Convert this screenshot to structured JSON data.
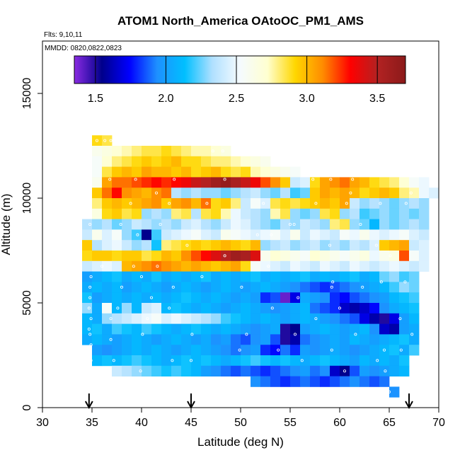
{
  "chart_data": {
    "type": "heatmap",
    "title": "ATOM1 North_America OAtoOC_PM1_AMS",
    "flights_label": "Flts: 9,10,11",
    "dates_label": "MMDD: 0820,0822,0823",
    "xlabel": "Latitude (deg N)",
    "ylabel": "Altitude (m)",
    "xlim": [
      30,
      70
    ],
    "ylim": [
      0,
      17500
    ],
    "x_ticks": [
      30,
      35,
      40,
      45,
      50,
      55,
      60,
      65,
      70
    ],
    "y_ticks": [
      0,
      5000,
      10000,
      15000
    ],
    "colorbar": {
      "range": [
        1.35,
        3.7
      ],
      "ticks": [
        1.5,
        2.0,
        2.5,
        3.0,
        3.5
      ],
      "tick_labels": [
        "1.5",
        "2.0",
        "2.5",
        "3.0",
        "3.5"
      ],
      "colors": [
        "#8a2be2",
        "#00008b",
        "#0000ff",
        "#1e90ff",
        "#00bfff",
        "#b0e0ff",
        "#f5fbff",
        "#ffffd0",
        "#ffd700",
        "#ff8c00",
        "#ff0000",
        "#b22222",
        "#8b1a1a"
      ]
    },
    "arrow_latitudes": [
      34.7,
      45,
      67
    ],
    "cell_size": {
      "lat": 1,
      "alt": 500
    },
    "bands": [
      {
        "alt": 12750,
        "lat": [
          35,
          36
        ],
        "values": [
          2.9,
          2.85
        ]
      },
      {
        "alt": 12250,
        "lat": [
          35,
          49
        ],
        "values": [
          2.6,
          2.65,
          2.7,
          2.75,
          2.8,
          2.85,
          2.85,
          2.9,
          2.85,
          2.8,
          2.75,
          2.75,
          2.7,
          2.65
        ]
      },
      {
        "alt": 11750,
        "lat": [
          35,
          52
        ],
        "values": [
          2.55,
          2.7,
          2.8,
          2.85,
          2.9,
          2.95,
          2.9,
          2.95,
          3.0,
          2.9,
          2.9,
          2.85,
          2.8,
          2.8,
          2.75,
          2.7,
          2.65,
          2.6
        ]
      },
      {
        "alt": 11250,
        "lat": [
          35,
          55
        ],
        "values": [
          2.55,
          2.85,
          2.95,
          3.0,
          2.95,
          3.05,
          3.0,
          3.0,
          2.95,
          3.0,
          2.9,
          2.95,
          3.0,
          2.9,
          2.85,
          2.9,
          2.75,
          2.7,
          2.65,
          2.6,
          2.55
        ]
      },
      {
        "alt": 10750,
        "lat": [
          35,
          68
        ],
        "values": [
          2.6,
          3.05,
          3.15,
          3.15,
          3.2,
          3.25,
          3.3,
          3.25,
          3.3,
          3.35,
          3.45,
          3.5,
          3.6,
          3.65,
          3.55,
          3.45,
          3.35,
          3.2,
          3.1,
          2.95,
          2.4,
          2.45,
          2.9,
          3.05,
          3.1,
          3.15,
          3.05,
          3.0,
          2.9,
          2.85,
          2.8,
          2.7,
          2.55,
          2.5
        ]
      },
      {
        "alt": 10250,
        "lat": [
          35,
          69
        ],
        "values": [
          2.95,
          3.15,
          3.3,
          3.1,
          3.05,
          3.0,
          3.1,
          3.15,
          2.35,
          2.3,
          2.35,
          2.3,
          2.3,
          2.25,
          2.3,
          2.35,
          2.4,
          2.3,
          2.25,
          2.35,
          2.2,
          2.25,
          2.95,
          3.05,
          3.0,
          3.05,
          3.0,
          2.9,
          2.95,
          3.0,
          2.95,
          2.8,
          2.75,
          2.5,
          2.45
        ]
      },
      {
        "alt": 9750,
        "lat": [
          35,
          68
        ],
        "values": [
          2.8,
          2.95,
          3.0,
          2.95,
          3.0,
          3.05,
          3.1,
          2.95,
          3.05,
          3.1,
          3.0,
          3.15,
          2.9,
          2.95,
          2.8,
          2.4,
          2.55,
          2.45,
          2.85,
          2.9,
          2.85,
          2.9,
          2.95,
          3.0,
          2.95,
          3.05,
          2.4,
          2.3,
          2.35,
          2.3,
          2.25,
          2.3,
          2.35,
          2.3
        ]
      },
      {
        "alt": 9250,
        "lat": [
          35,
          68
        ],
        "values": [
          2.65,
          2.9,
          2.95,
          2.85,
          2.9,
          2.3,
          2.35,
          2.3,
          2.8,
          2.85,
          2.35,
          2.85,
          2.9,
          2.75,
          2.5,
          2.4,
          2.35,
          2.3,
          2.75,
          2.85,
          2.3,
          2.25,
          2.3,
          2.85,
          2.9,
          2.3,
          2.35,
          2.2,
          2.25,
          2.3,
          2.25,
          2.3,
          2.25,
          2.3
        ]
      },
      {
        "alt": 8750,
        "lat": [
          34,
          68
        ],
        "values": [
          2.35,
          2.3,
          2.35,
          2.25,
          2.3,
          2.4,
          2.35,
          2.3,
          2.35,
          2.3,
          2.4,
          2.45,
          2.35,
          2.3,
          2.4,
          2.5,
          2.45,
          2.35,
          2.3,
          2.25,
          2.35,
          2.3,
          2.4,
          2.35,
          2.3,
          2.8,
          2.85,
          2.3,
          2.25,
          2.1,
          2.3,
          2.25,
          2.3,
          2.35,
          2.3
        ]
      },
      {
        "alt": 8250,
        "lat": [
          34,
          68
        ],
        "values": [
          2.4,
          2.6,
          2.45,
          2.55,
          2.3,
          2.2,
          1.55,
          2.2,
          2.4,
          2.45,
          2.5,
          2.55,
          2.45,
          2.4,
          2.6,
          2.55,
          2.5,
          2.45,
          2.5,
          2.55,
          2.45,
          2.6,
          2.4,
          2.5,
          2.45,
          2.4,
          2.55,
          2.5,
          2.6,
          2.5,
          2.45,
          2.5,
          2.55,
          2.45,
          2.4
        ]
      },
      {
        "alt": 7750,
        "lat": [
          34,
          68
        ],
        "values": [
          2.95,
          2.35,
          2.45,
          2.5,
          2.4,
          2.3,
          2.35,
          2.15,
          2.8,
          2.85,
          2.9,
          2.95,
          2.9,
          2.95,
          3.0,
          2.95,
          2.9,
          3.0,
          2.3,
          2.35,
          2.4,
          2.3,
          2.35,
          2.4,
          2.3,
          2.35,
          2.3,
          2.4,
          2.35,
          2.45,
          2.95,
          3.0,
          3.05,
          2.4,
          2.45
        ]
      },
      {
        "alt": 7250,
        "lat": [
          34,
          68
        ],
        "values": [
          2.9,
          2.95,
          2.95,
          2.9,
          2.95,
          2.95,
          2.85,
          2.9,
          3.0,
          2.95,
          3.1,
          3.2,
          3.3,
          3.4,
          3.5,
          3.6,
          3.55,
          3.4,
          2.6,
          2.7,
          2.65,
          2.6,
          2.55,
          2.7,
          2.65,
          2.6,
          2.55,
          2.6,
          2.65,
          2.5,
          2.6,
          2.65,
          3.2,
          2.55,
          2.45
        ]
      },
      {
        "alt": 6750,
        "lat": [
          34,
          68
        ],
        "values": [
          2.4,
          2.45,
          2.5,
          2.45,
          3.0,
          3.05,
          3.1,
          3.15,
          3.1,
          3.05,
          3.0,
          3.05,
          3.0,
          2.95,
          3.0,
          3.05,
          2.9,
          2.55,
          2.5,
          2.45,
          2.4,
          2.5,
          2.45,
          2.4,
          2.5,
          2.45,
          2.4,
          2.5,
          2.45,
          2.4,
          2.45,
          2.5,
          2.45,
          2.4,
          2.45
        ]
      },
      {
        "alt": 6250,
        "lat": [
          34,
          67
        ],
        "values": [
          2.0,
          2.05,
          2.1,
          2.15,
          2.05,
          2.1,
          2.05,
          2.15,
          2.05,
          2.1,
          2.05,
          2.1,
          2.15,
          2.05,
          2.1,
          2.05,
          2.1,
          2.15,
          2.05,
          2.1,
          2.05,
          2.1,
          2.15,
          2.05,
          2.1,
          2.05,
          2.1,
          2.15,
          2.05,
          2.1,
          2.25,
          2.3,
          2.2,
          2.25
        ]
      },
      {
        "alt": 5750,
        "lat": [
          34,
          67
        ],
        "values": [
          2.05,
          2.1,
          2.05,
          2.1,
          2.0,
          2.05,
          2.1,
          2.05,
          2.0,
          2.05,
          2.1,
          2.05,
          2.0,
          2.05,
          2.1,
          2.05,
          2.0,
          2.05,
          2.1,
          2.05,
          2.0,
          1.95,
          1.9,
          1.85,
          1.8,
          1.85,
          1.9,
          1.95,
          2.0,
          2.05,
          2.1,
          2.2,
          2.3,
          2.25
        ]
      },
      {
        "alt": 5250,
        "lat": [
          34,
          67
        ],
        "values": [
          2.15,
          2.0,
          2.05,
          2.1,
          2.05,
          2.1,
          2.05,
          2.1,
          2.05,
          2.1,
          2.15,
          2.1,
          2.05,
          2.1,
          2.05,
          2.0,
          2.05,
          2.0,
          1.8,
          1.85,
          1.4,
          1.7,
          2.05,
          2.0,
          1.95,
          1.8,
          1.75,
          1.85,
          1.9,
          1.95,
          2.0,
          2.1,
          2.15,
          2.2
        ]
      },
      {
        "alt": 4750,
        "lat": [
          34,
          67
        ],
        "values": [
          2.3,
          2.05,
          2.55,
          2.1,
          2.3,
          2.1,
          2.4,
          2.45,
          2.1,
          2.15,
          2.1,
          2.05,
          2.1,
          2.05,
          2.0,
          2.05,
          2.1,
          2.05,
          2.0,
          1.95,
          2.0,
          2.05,
          2.1,
          1.9,
          1.85,
          1.8,
          1.65,
          1.6,
          1.65,
          1.75,
          1.95,
          2.05,
          2.1,
          2.15
        ]
      },
      {
        "alt": 4250,
        "lat": [
          34,
          67
        ],
        "values": [
          2.1,
          2.05,
          2.3,
          2.35,
          2.4,
          2.45,
          2.5,
          2.55,
          2.45,
          2.5,
          2.45,
          2.4,
          2.35,
          2.3,
          2.2,
          2.15,
          2.1,
          2.05,
          2.1,
          2.05,
          2.0,
          2.05,
          2.1,
          2.05,
          2.0,
          1.95,
          1.9,
          1.85,
          1.7,
          1.6,
          1.5,
          1.7,
          2.0,
          2.1
        ]
      },
      {
        "alt": 3750,
        "lat": [
          34,
          67
        ],
        "values": [
          2.1,
          2.15,
          2.05,
          2.2,
          2.15,
          2.1,
          2.2,
          2.15,
          2.1,
          2.05,
          2.1,
          2.15,
          2.1,
          2.05,
          2.1,
          2.05,
          2.0,
          1.95,
          2.0,
          2.05,
          1.5,
          1.55,
          2.0,
          2.05,
          2.1,
          2.05,
          2.0,
          2.05,
          2.1,
          1.95,
          1.65,
          1.6,
          2.0,
          2.05
        ]
      },
      {
        "alt": 3250,
        "lat": [
          34,
          67
        ],
        "values": [
          2.05,
          2.1,
          2.05,
          2.0,
          2.05,
          2.1,
          2.05,
          2.0,
          2.05,
          2.1,
          2.05,
          2.0,
          2.05,
          1.95,
          2.0,
          1.9,
          1.85,
          1.95,
          2.0,
          1.85,
          1.5,
          1.6,
          1.9,
          1.95,
          2.0,
          2.05,
          2.0,
          2.1,
          2.05,
          2.0,
          2.05,
          2.1,
          2.15,
          2.05
        ]
      },
      {
        "alt": 2750,
        "lat": [
          35,
          67
        ],
        "values": [
          2.0,
          1.95,
          2.0,
          2.05,
          2.1,
          2.05,
          2.1,
          2.05,
          2.0,
          2.05,
          2.1,
          2.05,
          2.0,
          1.95,
          1.9,
          1.95,
          2.0,
          1.8,
          1.75,
          1.9,
          1.8,
          2.0,
          1.95,
          2.0,
          2.05,
          2.0,
          1.95,
          2.0,
          2.05,
          2.1,
          2.15,
          2.05,
          2.2
        ]
      },
      {
        "alt": 2250,
        "lat": [
          35,
          66
        ],
        "values": [
          2.1,
          2.15,
          2.1,
          2.15,
          2.2,
          2.15,
          2.1,
          2.05,
          2.1,
          2.15,
          2.1,
          2.15,
          2.1,
          2.05,
          2.1,
          2.15,
          2.2,
          2.15,
          2.1,
          2.15,
          2.1,
          2.05,
          2.1,
          2.15,
          2.1,
          2.05,
          2.0,
          2.1,
          2.05,
          2.1,
          2.05,
          2.15
        ]
      },
      {
        "alt": 1750,
        "lat": [
          37,
          66
        ],
        "values": [
          2.4,
          2.35,
          2.3,
          2.25,
          2.2,
          2.15,
          2.2,
          2.15,
          2.1,
          2.0,
          1.95,
          1.9,
          1.85,
          1.9,
          1.85,
          1.8,
          1.85,
          1.9,
          1.95,
          2.0,
          1.9,
          1.95,
          1.65,
          1.55,
          1.85,
          2.0,
          1.95,
          2.0,
          2.05,
          2.1
        ]
      },
      {
        "alt": 1250,
        "lat": [
          51,
          64
        ],
        "values": [
          1.95,
          1.9,
          1.85,
          1.8,
          1.85,
          1.9,
          1.85,
          1.8,
          1.85,
          1.9,
          1.95,
          1.9,
          1.85,
          1.9
        ]
      },
      {
        "alt": 750,
        "lat": [
          65,
          65
        ],
        "values": [
          1.95
        ]
      }
    ],
    "sample_points": [
      [
        35.5,
        12750
      ],
      [
        36.3,
        12750
      ],
      [
        36.9,
        12750
      ],
      [
        47.2,
        12250
      ],
      [
        48.2,
        12250
      ],
      [
        36.8,
        10900
      ],
      [
        39.4,
        10900
      ],
      [
        43.3,
        10900
      ],
      [
        48.4,
        10900
      ],
      [
        57.3,
        10900
      ],
      [
        59.1,
        10900
      ],
      [
        61.3,
        10900
      ],
      [
        41.5,
        10250
      ],
      [
        61.1,
        10250
      ],
      [
        67.2,
        10250
      ],
      [
        38.9,
        9750
      ],
      [
        42.8,
        9750
      ],
      [
        46.6,
        9750
      ],
      [
        52.3,
        9750
      ],
      [
        57.6,
        9750
      ],
      [
        60.7,
        9750
      ],
      [
        64.1,
        9750
      ],
      [
        66.7,
        9750
      ],
      [
        34.8,
        8750
      ],
      [
        37.9,
        8750
      ],
      [
        41.9,
        8750
      ],
      [
        55.4,
        8750
      ],
      [
        62.1,
        8750
      ],
      [
        39.6,
        8250
      ],
      [
        51.7,
        8250
      ],
      [
        53.1,
        8250
      ],
      [
        44.6,
        7750
      ],
      [
        59.0,
        7750
      ],
      [
        63.7,
        7750
      ],
      [
        48.4,
        7250
      ],
      [
        65.1,
        7250
      ],
      [
        36.0,
        6750
      ],
      [
        39.2,
        6750
      ],
      [
        41.6,
        6750
      ],
      [
        52.8,
        6750
      ],
      [
        34.9,
        6250
      ],
      [
        40.0,
        6250
      ],
      [
        46.1,
        6250
      ],
      [
        59.3,
        6000
      ],
      [
        64.2,
        6000
      ],
      [
        66.6,
        6000
      ],
      [
        34.8,
        5750
      ],
      [
        38.0,
        5750
      ],
      [
        43.2,
        5750
      ],
      [
        50.1,
        5750
      ],
      [
        59.2,
        5750
      ],
      [
        62.3,
        5750
      ],
      [
        34.8,
        5250
      ],
      [
        41.0,
        5250
      ],
      [
        55.8,
        5250
      ],
      [
        34.7,
        4750
      ],
      [
        37.6,
        4750
      ],
      [
        42.8,
        4750
      ],
      [
        53.2,
        4750
      ],
      [
        60.0,
        4750
      ],
      [
        34.9,
        4250
      ],
      [
        36.9,
        4250
      ],
      [
        40.6,
        4250
      ],
      [
        57.6,
        4250
      ],
      [
        66.1,
        4250
      ],
      [
        34.7,
        3750
      ],
      [
        34.8,
        3500
      ],
      [
        40.1,
        3500
      ],
      [
        45.1,
        3500
      ],
      [
        50.6,
        3500
      ],
      [
        55.5,
        3500
      ],
      [
        61.6,
        3500
      ],
      [
        67.3,
        3500
      ],
      [
        34.9,
        3000
      ],
      [
        36.9,
        3250
      ],
      [
        49.9,
        2750
      ],
      [
        53.8,
        2750
      ],
      [
        59.2,
        2750
      ],
      [
        64.5,
        2750
      ],
      [
        66.2,
        2750
      ],
      [
        34.9,
        2250
      ],
      [
        37.2,
        2250
      ],
      [
        45.0,
        2250
      ],
      [
        56.2,
        2250
      ],
      [
        63.8,
        2250
      ],
      [
        36.1,
        1750
      ],
      [
        39.9,
        1750
      ],
      [
        60.5,
        1750
      ],
      [
        64.6,
        1750
      ],
      [
        65.0,
        750
      ],
      [
        43.1,
        2250
      ],
      [
        55.0,
        8750
      ]
    ]
  }
}
